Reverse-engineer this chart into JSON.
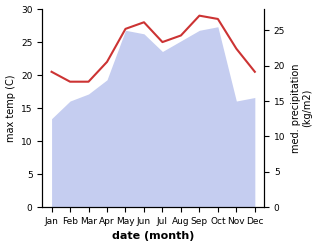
{
  "months": [
    "Jan",
    "Feb",
    "Mar",
    "Apr",
    "May",
    "Jun",
    "Jul",
    "Aug",
    "Sep",
    "Oct",
    "Nov",
    "Dec"
  ],
  "temperature": [
    20.5,
    19.0,
    19.0,
    22.0,
    27.0,
    28.0,
    25.0,
    26.0,
    29.0,
    28.5,
    24.0,
    20.5
  ],
  "precipitation": [
    12.5,
    15.0,
    16.0,
    18.0,
    25.0,
    24.5,
    22.0,
    23.5,
    25.0,
    25.5,
    15.0,
    15.5
  ],
  "temp_color": "#cc3333",
  "precip_fill_color": "#c5cdf0",
  "temp_ylim": [
    0,
    30
  ],
  "precip_ylim": [
    0,
    28
  ],
  "temp_yticks": [
    0,
    5,
    10,
    15,
    20,
    25,
    30
  ],
  "precip_yticks": [
    0,
    5,
    10,
    15,
    20,
    25
  ],
  "xlabel": "date (month)",
  "ylabel_left": "max temp (C)",
  "ylabel_right": "med. precipitation\n(kg/m2)",
  "background_color": "#ffffff"
}
